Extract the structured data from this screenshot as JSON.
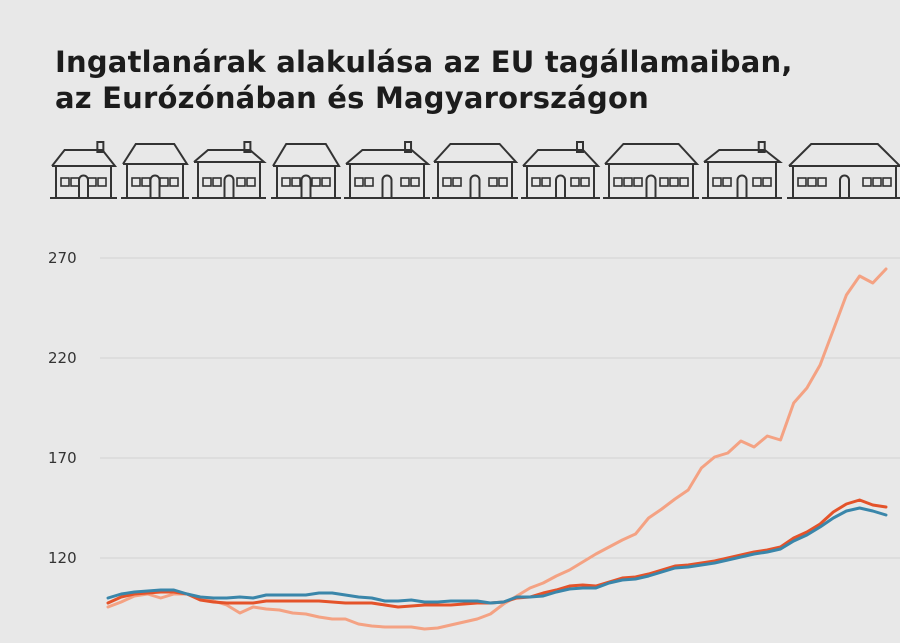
{
  "title": {
    "line1": "Ingatlanárak alakulása az EU tagállamaiban,",
    "line2": "az Eurózónában és Magyarországon"
  },
  "decoration": {
    "icon": "house-icon",
    "count": 10,
    "stroke_color": "#333333"
  },
  "chart_data": {
    "type": "line",
    "title": "Ingatlanárak alakulása az EU tagállamaiban, az Eurózónában és Magyarországon",
    "xlabel": "",
    "ylabel": "",
    "y_ticks": [
      "120",
      "170",
      "220",
      "270"
    ],
    "ylim": [
      90,
      280
    ],
    "grid": "horizontal",
    "legend": "none",
    "series": [
      {
        "color": "#f4a283",
        "values": [
          95.5,
          98,
          101,
          102,
          100,
          102,
          102,
          100,
          98.5,
          96.5,
          92.5,
          95.5,
          94.5,
          94,
          92.5,
          92,
          90.5,
          89.5,
          89.5,
          87,
          86,
          85.5,
          85.5,
          85.5,
          84.5,
          85,
          86.5,
          88,
          89.5,
          92,
          97,
          101,
          105,
          107.5,
          111,
          114,
          118,
          122,
          125.5,
          129,
          132,
          140,
          144.5,
          149.5,
          154,
          165,
          170.5,
          172.5,
          178.5,
          175.5,
          181,
          179,
          197.5,
          205,
          216.5,
          234,
          251.5,
          261,
          257.5,
          264.5
        ]
      },
      {
        "color": "#e4532a",
        "values": [
          97.5,
          100.5,
          102,
          102.5,
          103,
          103,
          102,
          99,
          98,
          97.5,
          97.5,
          97.5,
          98.5,
          98.5,
          98.5,
          98.5,
          98.5,
          98,
          97.5,
          97.5,
          97.5,
          96.5,
          95.5,
          96,
          96.5,
          96.5,
          96.5,
          97,
          97.5,
          97.5,
          98,
          100,
          100.5,
          102.5,
          104,
          106,
          106.5,
          106,
          108,
          110,
          110.5,
          112,
          114,
          116,
          116.5,
          117.5,
          118.5,
          120,
          121.5,
          123,
          124,
          125.5,
          130,
          133,
          137,
          143,
          147,
          149,
          146.5,
          145.5
        ]
      },
      {
        "color": "#3a86aa",
        "values": [
          100,
          102,
          103,
          103.5,
          104,
          104,
          102,
          100.5,
          100,
          100,
          100.5,
          100,
          101.5,
          101.5,
          101.5,
          101.5,
          102.5,
          102.5,
          101.5,
          100.5,
          100,
          98.5,
          98.5,
          99,
          98,
          98,
          98.5,
          98.5,
          98.5,
          97.5,
          98,
          100.5,
          100.5,
          101,
          103,
          104.5,
          105,
          105,
          107.5,
          109,
          109.5,
          111,
          113,
          115,
          115.5,
          116.5,
          117.5,
          119,
          120.5,
          122,
          123,
          124.5,
          128.5,
          131.5,
          135.5,
          140,
          143.5,
          145,
          143.5,
          141.5
        ]
      }
    ]
  }
}
